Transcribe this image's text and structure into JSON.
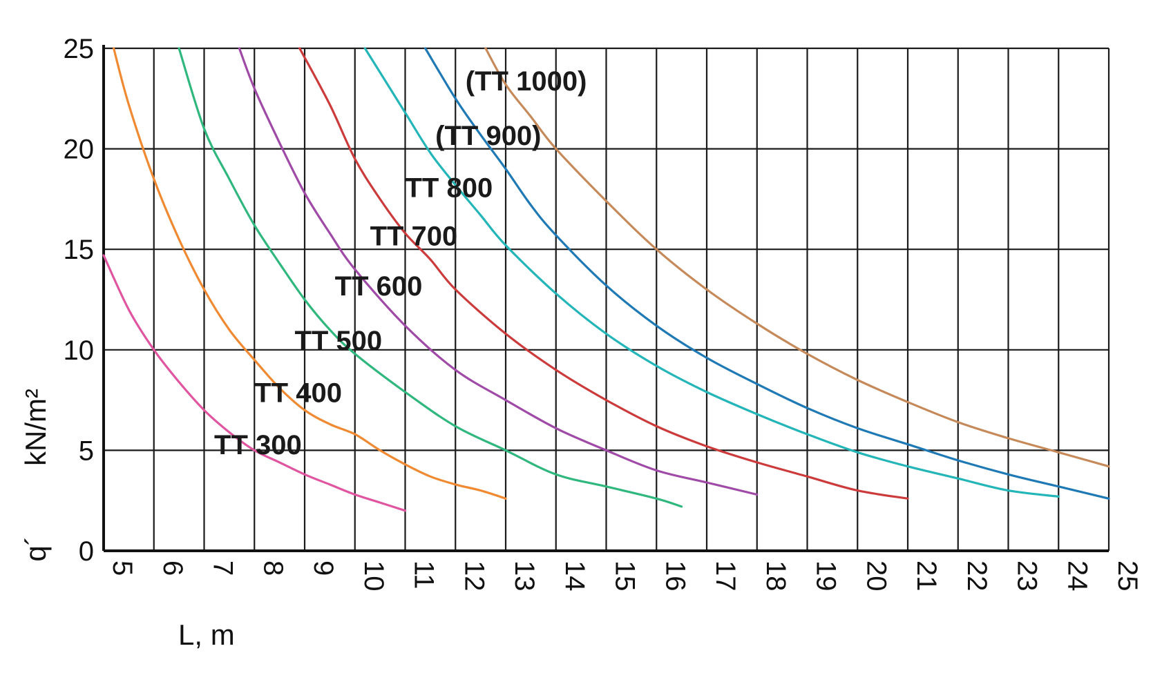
{
  "chart_data": {
    "type": "line",
    "title": "",
    "xlabel": "L, m",
    "ylabel": "kN/m²",
    "ylabel_prefix": "q´",
    "xlim": [
      5,
      25
    ],
    "ylim": [
      0,
      25
    ],
    "x_ticks": [
      5,
      6,
      7,
      8,
      9,
      10,
      11,
      12,
      13,
      14,
      15,
      16,
      17,
      18,
      19,
      20,
      21,
      22,
      23,
      24,
      25
    ],
    "y_ticks": [
      0,
      5,
      10,
      15,
      20,
      25
    ],
    "grid": true,
    "legend": "none",
    "series": [
      {
        "name": "TT 300",
        "color": "#e0559f",
        "x": [
          5,
          5.5,
          6,
          6.5,
          7,
          7.5,
          8,
          8.5,
          9,
          9.5,
          10,
          10.5,
          11
        ],
        "y": [
          14.7,
          12.0,
          10.0,
          8.4,
          7.0,
          5.9,
          5.0,
          4.4,
          3.8,
          3.3,
          2.8,
          2.4,
          2.0
        ],
        "label_at": [
          7.2,
          4.8
        ]
      },
      {
        "name": "TT 400",
        "color": "#f08a32",
        "x": [
          5.2,
          5.5,
          6,
          6.5,
          7,
          7.5,
          8,
          8.5,
          9,
          9.5,
          10,
          10.5,
          11,
          11.5,
          12,
          12.5,
          13
        ],
        "y": [
          25.0,
          22.2,
          18.5,
          15.5,
          13.0,
          11.0,
          9.5,
          8.1,
          7.0,
          6.3,
          5.8,
          5.0,
          4.3,
          3.7,
          3.3,
          3.0,
          2.6
        ],
        "label_at": [
          8.0,
          7.4
        ]
      },
      {
        "name": "TT 500",
        "color": "#2fb77e",
        "x": [
          6.5,
          7,
          7.5,
          8,
          8.5,
          9,
          9.5,
          10,
          11,
          12,
          13,
          14,
          15,
          16,
          16.5
        ],
        "y": [
          25.0,
          21.0,
          18.5,
          16.2,
          14.3,
          12.5,
          11.0,
          9.8,
          7.9,
          6.2,
          5.0,
          3.8,
          3.2,
          2.6,
          2.2
        ],
        "label_at": [
          8.8,
          10.0
        ]
      },
      {
        "name": "TT 600",
        "color": "#a04aa8",
        "x": [
          7.7,
          8,
          8.5,
          9,
          9.5,
          10,
          11,
          12,
          13,
          14,
          15,
          16,
          17,
          18
        ],
        "y": [
          25.0,
          23.0,
          20.3,
          17.8,
          15.8,
          14.0,
          11.2,
          9.0,
          7.5,
          6.1,
          5.0,
          4.0,
          3.4,
          2.8
        ],
        "label_at": [
          9.6,
          12.7
        ]
      },
      {
        "name": "TT 700",
        "color": "#cc3b3b",
        "x": [
          8.9,
          9.5,
          10,
          10.5,
          11,
          11.5,
          12,
          13,
          14,
          15,
          16,
          17,
          18,
          19,
          20,
          21
        ],
        "y": [
          25.0,
          22.2,
          19.5,
          17.5,
          15.8,
          14.5,
          13.0,
          10.8,
          9.0,
          7.5,
          6.2,
          5.2,
          4.4,
          3.7,
          3.0,
          2.6
        ],
        "label_at": [
          10.3,
          15.2
        ]
      },
      {
        "name": "TT 800",
        "color": "#24b5b8",
        "x": [
          10.2,
          10.5,
          11,
          11.5,
          12,
          12.5,
          13,
          14,
          15,
          16,
          17,
          18,
          19,
          20,
          21,
          22,
          23,
          24
        ],
        "y": [
          25.0,
          23.8,
          21.8,
          19.8,
          18.2,
          16.7,
          15.2,
          12.8,
          10.8,
          9.2,
          7.9,
          6.8,
          5.8,
          4.9,
          4.2,
          3.6,
          3.0,
          2.7
        ],
        "label_at": [
          11.0,
          17.6
        ]
      },
      {
        "name": "(TT 900)",
        "color": "#1f79b4",
        "x": [
          11.4,
          12,
          12.5,
          13,
          13.5,
          14,
          15,
          16,
          17,
          18,
          19,
          20,
          21,
          22,
          23,
          24,
          25
        ],
        "y": [
          25.0,
          22.5,
          20.7,
          19.0,
          17.2,
          15.7,
          13.2,
          11.2,
          9.6,
          8.3,
          7.1,
          6.1,
          5.3,
          4.5,
          3.8,
          3.2,
          2.6
        ],
        "label_at": [
          11.6,
          20.2
        ]
      },
      {
        "name": "(TT 1000)",
        "color": "#c68a5a",
        "x": [
          12.6,
          13,
          13.5,
          14,
          15,
          16,
          17,
          18,
          19,
          20,
          21,
          22,
          23,
          24,
          25
        ],
        "y": [
          25.0,
          23.2,
          21.6,
          20.0,
          17.4,
          15.0,
          13.0,
          11.3,
          9.8,
          8.5,
          7.4,
          6.4,
          5.6,
          4.9,
          4.2
        ],
        "label_at": [
          12.2,
          22.9
        ]
      }
    ]
  }
}
